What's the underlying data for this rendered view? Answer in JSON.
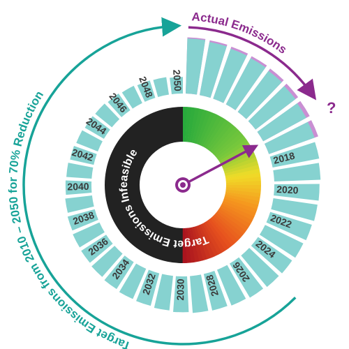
{
  "chart_data": {
    "type": "radial_bar",
    "title": "Target Emissions from 2010 – 2050 for 70% Reduction",
    "annotations": {
      "actual": "Actual Emissions",
      "question": "?",
      "center": "Target Emissions Infeasible"
    },
    "categories": [
      null,
      null,
      null,
      null,
      null,
      null,
      null,
      null,
      "2018",
      null,
      "2020",
      null,
      "2022",
      null,
      "2024",
      null,
      "2026",
      null,
      "2028",
      null,
      "2030",
      null,
      "2032",
      null,
      "2034",
      null,
      "2036",
      null,
      "2038",
      null,
      "2040",
      null,
      "2042",
      null,
      "2044",
      null,
      "2046",
      null,
      "2048",
      null,
      "2050"
    ],
    "rlim": [
      0,
      100
    ],
    "series": [
      {
        "name": "Target Emissions",
        "color": "#86d2d0",
        "values": [
          100,
          98,
          96,
          95,
          93,
          91,
          89,
          88,
          86,
          84,
          82,
          81,
          79,
          77,
          75,
          74,
          72,
          70,
          68,
          67,
          65,
          63,
          61,
          60,
          58,
          56,
          54,
          53,
          51,
          49,
          47,
          46,
          44,
          42,
          40,
          39,
          37,
          35,
          33,
          32,
          30
        ]
      },
      {
        "name": "Actual Emissions",
        "color": "#c98fd3",
        "values": [
          102,
          101,
          100,
          99,
          98,
          97,
          96,
          95,
          null,
          null,
          null,
          null,
          null,
          null,
          null,
          null,
          null,
          null,
          null,
          null,
          null,
          null,
          null,
          null,
          null,
          null,
          null,
          null,
          null,
          null,
          null,
          null,
          null,
          null,
          null,
          null,
          null,
          null,
          null,
          null,
          null
        ]
      }
    ]
  }
}
